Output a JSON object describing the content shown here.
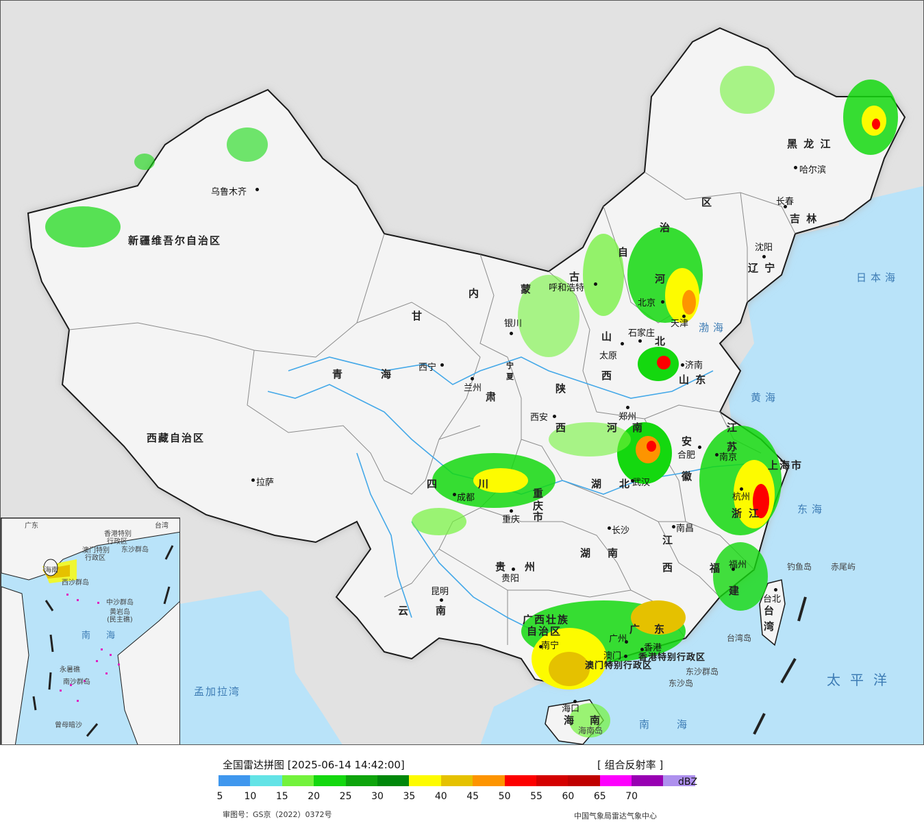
{
  "title": "全国雷达拼图 [2025-06-14 14:42:00]",
  "product": "[ 组合反射率 ]",
  "unit": "dBZ",
  "review_number": "审图号：GS京（2022）0372号",
  "source": "中国气象局雷达气象中心",
  "colors": {
    "land": "#f4f4f4",
    "land_border": "#1a1a1a",
    "outside": "#e2e2e2",
    "sea": "#b9e3f9",
    "river": "#43a8e8",
    "province_border": "#8a8a8a"
  },
  "legend": {
    "ticks": [
      "5",
      "10",
      "15",
      "20",
      "25",
      "30",
      "35",
      "40",
      "45",
      "50",
      "55",
      "60",
      "65",
      "70"
    ],
    "colors": [
      "#3f97ee",
      "#63e3e6",
      "#73f23c",
      "#14d80f",
      "#0ea40c",
      "#00870a",
      "#fdfb00",
      "#e5c100",
      "#fd9400",
      "#fd0000",
      "#d40000",
      "#c00000",
      "#fd00fd",
      "#9800b2",
      "#ae90ee"
    ]
  },
  "provinces": [
    {
      "name": "新疆维吾尔自治区",
      "key": "xinjiang"
    },
    {
      "name": "西藏自治区",
      "key": "xizang"
    },
    {
      "name": "青",
      "key": "qing1"
    },
    {
      "name": "海",
      "key": "qing2"
    },
    {
      "name": "甘",
      "key": "gan"
    },
    {
      "name": "肃",
      "key": "su"
    },
    {
      "name": "内",
      "key": "nei"
    },
    {
      "name": "蒙",
      "key": "meng"
    },
    {
      "name": "古",
      "key": "gu"
    },
    {
      "name": "自",
      "key": "zi"
    },
    {
      "name": "治",
      "key": "zhi"
    },
    {
      "name": "区",
      "key": "qu"
    },
    {
      "name": "黑 龙 江",
      "key": "heilongjiang"
    },
    {
      "name": "吉 林",
      "key": "jilin"
    },
    {
      "name": "辽 宁",
      "key": "liaoning"
    },
    {
      "name": "河",
      "key": "hebei1"
    },
    {
      "name": "北",
      "key": "hebei2"
    },
    {
      "name": "山",
      "key": "shanxi1"
    },
    {
      "name": "西",
      "key": "shanxi2"
    },
    {
      "name": "山 东",
      "key": "shandong"
    },
    {
      "name": "陕",
      "key": "shaanxi1"
    },
    {
      "name": "西",
      "key": "shaanxi2"
    },
    {
      "name": "河",
      "key": "henan1"
    },
    {
      "name": "南",
      "key": "henan2"
    },
    {
      "name": "江",
      "key": "jiangsu1"
    },
    {
      "name": "苏",
      "key": "jiangsu2"
    },
    {
      "name": "安",
      "key": "anhui1"
    },
    {
      "name": "徽",
      "key": "anhui2"
    },
    {
      "name": "湖",
      "key": "hubei1"
    },
    {
      "name": "北",
      "key": "hubei2"
    },
    {
      "name": "浙",
      "key": "zhe"
    },
    {
      "name": "江",
      "key": "zhejiang"
    },
    {
      "name": "四",
      "key": "si"
    },
    {
      "name": "川",
      "key": "chuan"
    },
    {
      "name": "重",
      "key": "chong"
    },
    {
      "name": "庆",
      "key": "qing"
    },
    {
      "name": "市",
      "key": "shi"
    },
    {
      "name": "贵",
      "key": "gui"
    },
    {
      "name": "州",
      "key": "zhou"
    },
    {
      "name": "湖",
      "key": "hunan1"
    },
    {
      "name": "南",
      "key": "hunan2"
    },
    {
      "name": "江",
      "key": "jiangxi1"
    },
    {
      "name": "西",
      "key": "jiangxi2"
    },
    {
      "name": "福",
      "key": "fu"
    },
    {
      "name": "建",
      "key": "jian"
    },
    {
      "name": "云",
      "key": "yun"
    },
    {
      "name": "南",
      "key": "nan"
    },
    {
      "name": "广西壮族",
      "key": "guangxi1"
    },
    {
      "name": "自治区",
      "key": "guangxi2"
    },
    {
      "name": "广",
      "key": "guang"
    },
    {
      "name": "东",
      "key": "dong"
    },
    {
      "name": "海",
      "key": "hai"
    },
    {
      "name": "南",
      "key": "hainan"
    },
    {
      "name": "台",
      "key": "tai"
    },
    {
      "name": "湾",
      "key": "wan"
    },
    {
      "name": "上海市",
      "key": "shanghai"
    },
    {
      "name": "香港特别行政区",
      "key": "hongkong"
    },
    {
      "name": "澳门特别行政区",
      "key": "macau"
    },
    {
      "name": "宁",
      "key": "ningxia1"
    },
    {
      "name": "夏",
      "key": "ningxia2"
    }
  ],
  "cities": [
    {
      "name": "乌鲁木齐",
      "key": "urumqi"
    },
    {
      "name": "拉萨",
      "key": "lhasa"
    },
    {
      "name": "西宁",
      "key": "xining"
    },
    {
      "name": "兰州",
      "key": "lanzhou"
    },
    {
      "name": "银川",
      "key": "yinchuan"
    },
    {
      "name": "呼和浩特",
      "key": "hohhot"
    },
    {
      "name": "哈尔滨",
      "key": "harbin"
    },
    {
      "name": "长春",
      "key": "changchun"
    },
    {
      "name": "沈阳",
      "key": "shenyang"
    },
    {
      "name": "北京",
      "key": "beijing"
    },
    {
      "name": "天津",
      "key": "tianjin"
    },
    {
      "name": "石家庄",
      "key": "shijiazhuang"
    },
    {
      "name": "太原",
      "key": "taiyuan"
    },
    {
      "name": "济南",
      "key": "jinan"
    },
    {
      "name": "郑州",
      "key": "zhengzhou"
    },
    {
      "name": "西安",
      "key": "xian"
    },
    {
      "name": "合肥",
      "key": "hefei"
    },
    {
      "name": "南京",
      "key": "nanjing"
    },
    {
      "name": "杭州",
      "key": "hangzhou"
    },
    {
      "name": "武汉",
      "key": "wuhan"
    },
    {
      "name": "成都",
      "key": "chengdu"
    },
    {
      "name": "重庆",
      "key": "chongqing"
    },
    {
      "name": "长沙",
      "key": "changsha"
    },
    {
      "name": "南昌",
      "key": "nanchang"
    },
    {
      "name": "福州",
      "key": "fuzhou"
    },
    {
      "name": "台北",
      "key": "taipei"
    },
    {
      "name": "贵阳",
      "key": "guiyang"
    },
    {
      "name": "昆明",
      "key": "kunming"
    },
    {
      "name": "南宁",
      "key": "nanning"
    },
    {
      "name": "广州",
      "key": "guangzhou"
    },
    {
      "name": "香港",
      "key": "hk"
    },
    {
      "name": "澳门",
      "key": "mo"
    },
    {
      "name": "海口",
      "key": "haikou"
    }
  ],
  "seas": [
    {
      "name": "日本海",
      "key": "japan_sea"
    },
    {
      "name": "渤海",
      "key": "bohai"
    },
    {
      "name": "黄海",
      "key": "yellow_sea"
    },
    {
      "name": "东海",
      "key": "east_sea"
    },
    {
      "name": "太平洋",
      "key": "pacific"
    },
    {
      "name": "南海",
      "key": "south_sea"
    },
    {
      "name": "孟加拉湾",
      "key": "bengal"
    }
  ],
  "islands": [
    {
      "name": "钓鱼岛",
      "key": "diaoyu"
    },
    {
      "name": "赤尾屿",
      "key": "chiwei"
    },
    {
      "name": "台湾岛",
      "key": "taiwan_island"
    },
    {
      "name": "东沙群岛",
      "key": "dongsha"
    },
    {
      "name": "东沙岛",
      "key": "dongsha_island"
    },
    {
      "name": "海南岛",
      "key": "hainan_island"
    }
  ],
  "inset": {
    "labels": [
      {
        "name": "广东",
        "key": "i_guangdong"
      },
      {
        "name": "台湾",
        "key": "i_taiwan"
      },
      {
        "name": "香港特别",
        "key": "i_hk1"
      },
      {
        "name": "行政区",
        "key": "i_hk2"
      },
      {
        "name": "澳门特别",
        "key": "i_mo1"
      },
      {
        "name": "行政区",
        "key": "i_mo2"
      },
      {
        "name": "海南",
        "key": "i_hainan"
      },
      {
        "name": "西沙群岛",
        "key": "i_xisha"
      },
      {
        "name": "中沙群岛",
        "key": "i_zhongsha"
      },
      {
        "name": "黄岩岛",
        "key": "i_huangyan"
      },
      {
        "name": "(民主礁)",
        "key": "i_minzhu"
      },
      {
        "name": "南",
        "key": "i_nan"
      },
      {
        "name": "海",
        "key": "i_hai"
      },
      {
        "name": "永暑礁",
        "key": "i_yongshu"
      },
      {
        "name": "南沙群岛",
        "key": "i_nansha"
      },
      {
        "name": "曾母暗沙",
        "key": "i_zengmu"
      },
      {
        "name": "东沙群岛",
        "key": "i_dongsha"
      }
    ]
  }
}
